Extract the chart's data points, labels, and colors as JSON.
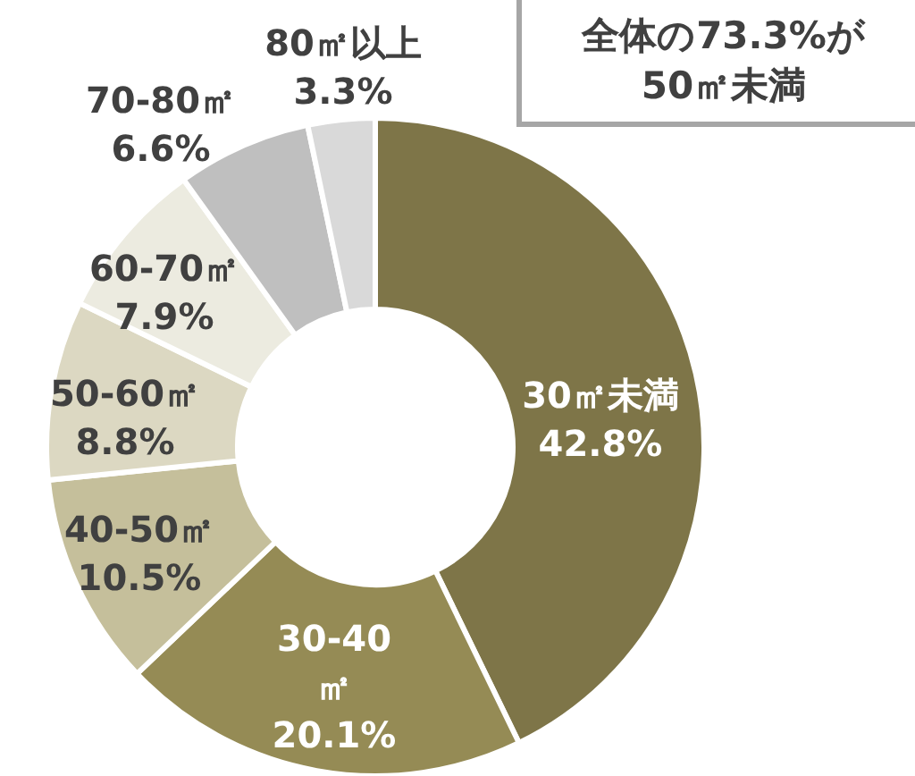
{
  "chart_data": {
    "type": "donut",
    "categories": [
      "30㎡未満",
      "30-40㎡",
      "40-50㎡",
      "50-60㎡",
      "60-70㎡",
      "70-80㎡",
      "80㎡以上"
    ],
    "values": [
      42.8,
      20.1,
      10.5,
      8.8,
      7.9,
      6.6,
      3.3
    ],
    "value_labels": [
      "42.8%",
      "20.1%",
      "10.5%",
      "8.8%",
      "7.9%",
      "6.6%",
      "3.3%"
    ],
    "colors": [
      "#7e7548",
      "#958b55",
      "#c5bf9b",
      "#dcd8c2",
      "#ecebe0",
      "#bfbfbf",
      "#d9d9d9"
    ],
    "annotations": [
      "全体の73.3%が50㎡未満"
    ]
  }
}
